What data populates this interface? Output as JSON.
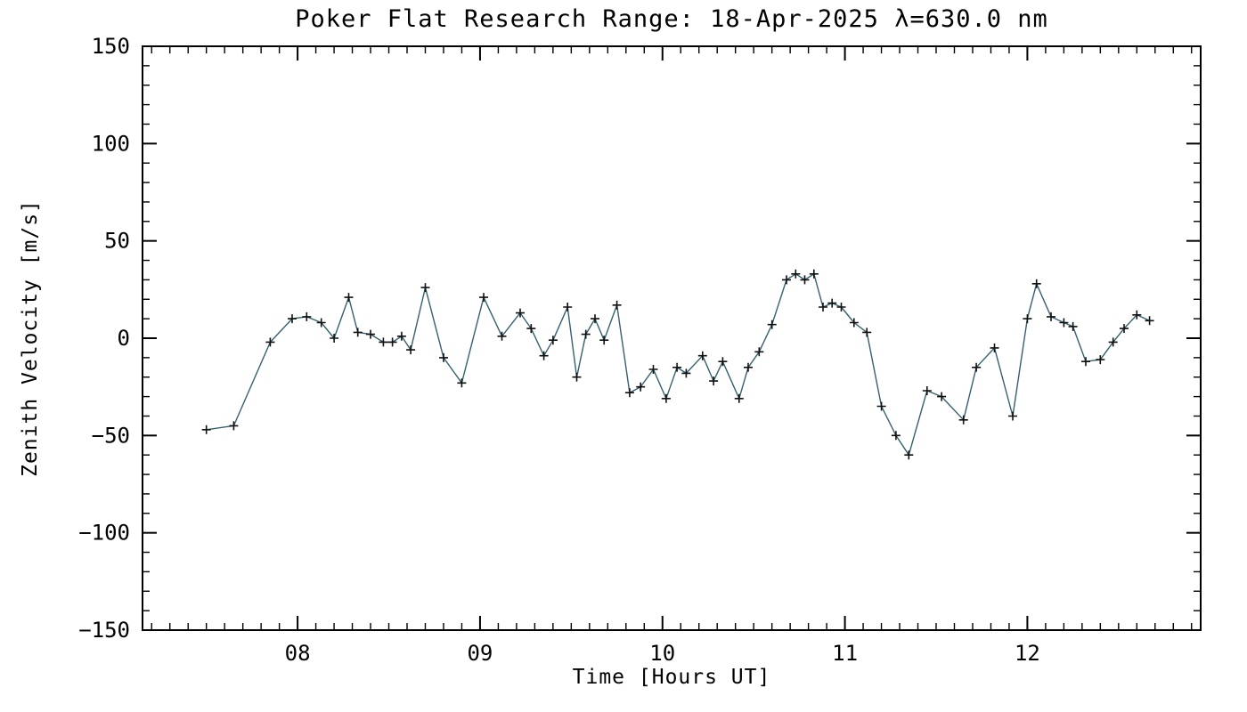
{
  "chart_data": {
    "type": "line",
    "title": "Poker Flat Research Range: 18-Apr-2025 λ=630.0 nm",
    "xlabel": "Time [Hours UT]",
    "ylabel": "Zenith Velocity [m/s]",
    "xlim": [
      7.15,
      12.95
    ],
    "ylim": [
      -150,
      150
    ],
    "x_major_ticks": [
      8,
      9,
      10,
      11,
      12
    ],
    "x_tick_labels": [
      "08",
      "09",
      "10",
      "11",
      "12"
    ],
    "x_minor_step": 0.1,
    "y_major_ticks": [
      -150,
      -100,
      -50,
      0,
      50,
      100,
      150
    ],
    "y_tick_labels": [
      "−150",
      "−100",
      "−50",
      "0",
      "50",
      "100",
      "150"
    ],
    "y_minor_step": 10,
    "marker": "plus",
    "line_color": "#35616f",
    "marker_color": "#111111",
    "axis_color": "#000000",
    "grid": "off",
    "legend": "none",
    "x": [
      7.5,
      7.65,
      7.85,
      7.97,
      8.05,
      8.13,
      8.2,
      8.28,
      8.33,
      8.4,
      8.47,
      8.52,
      8.57,
      8.62,
      8.7,
      8.8,
      8.9,
      9.02,
      9.12,
      9.22,
      9.28,
      9.35,
      9.4,
      9.48,
      9.53,
      9.58,
      9.63,
      9.68,
      9.75,
      9.82,
      9.88,
      9.95,
      10.02,
      10.08,
      10.13,
      10.22,
      10.28,
      10.33,
      10.42,
      10.47,
      10.53,
      10.6,
      10.68,
      10.73,
      10.78,
      10.83,
      10.88,
      10.93,
      10.98,
      11.05,
      11.12,
      11.2,
      11.28,
      11.35,
      11.45,
      11.53,
      11.65,
      11.72,
      11.82,
      11.92,
      12.0,
      12.05,
      12.13,
      12.2,
      12.25,
      12.32,
      12.4,
      12.47,
      12.53,
      12.6,
      12.67
    ],
    "y": [
      -47,
      -45,
      -2,
      10,
      11,
      8,
      0,
      21,
      3,
      2,
      -2,
      -2,
      1,
      -6,
      26,
      -10,
      -23,
      21,
      1,
      13,
      5,
      -9,
      -1,
      16,
      -20,
      2,
      10,
      -1,
      17,
      -28,
      -25,
      -16,
      -31,
      -15,
      -18,
      -9,
      -22,
      -12,
      -31,
      -15,
      -7,
      7,
      30,
      33,
      30,
      33,
      16,
      18,
      16,
      8,
      3,
      -35,
      -50,
      -60,
      -27,
      -30,
      -42,
      -15,
      -5,
      -40,
      10,
      28,
      11,
      8,
      6,
      -12,
      -11,
      -2,
      5,
      12,
      9
    ]
  }
}
